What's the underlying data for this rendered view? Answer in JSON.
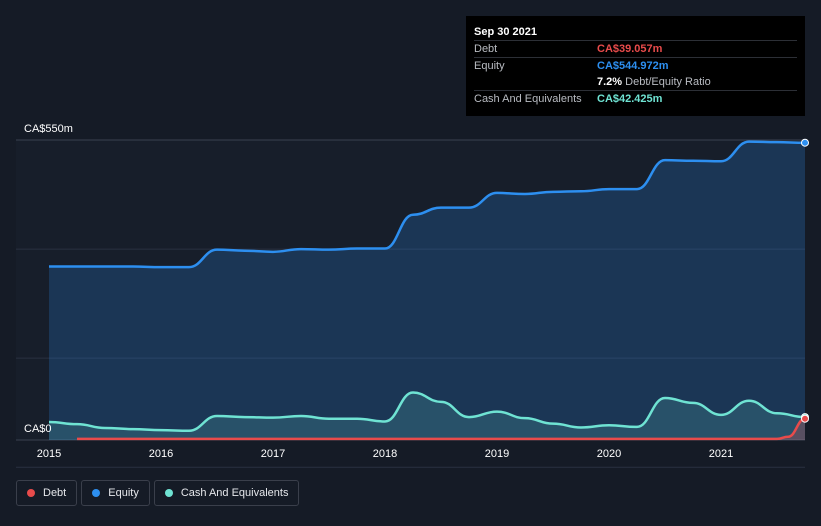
{
  "tooltip": {
    "date": "Sep 30 2021",
    "rows": [
      {
        "label": "Debt",
        "value": "CA$39.057m",
        "color": "#e84b4b"
      },
      {
        "label": "Equity",
        "value": "CA$544.972m",
        "color": "#2d8ff0"
      },
      {
        "label": "",
        "value": "7.2%",
        "suffix": "Debt/Equity Ratio",
        "color": "#ffffff"
      },
      {
        "label": "Cash And Equivalents",
        "value": "CA$42.425m",
        "color": "#6fe3d3"
      }
    ]
  },
  "legend": [
    {
      "label": "Debt",
      "color": "#e84b4b"
    },
    {
      "label": "Equity",
      "color": "#2d8ff0"
    },
    {
      "label": "Cash And Equivalents",
      "color": "#6fe3d3"
    }
  ],
  "chart_data": {
    "type": "area",
    "y_top_label": "CA$550m",
    "y_bottom_label": "CA$0",
    "ylim": [
      0,
      550
    ],
    "xlim": [
      2015,
      2021.75
    ],
    "x_ticks": [
      "2015",
      "2016",
      "2017",
      "2018",
      "2019",
      "2020",
      "2021"
    ],
    "grid": true,
    "series": [
      {
        "name": "Debt",
        "color": "#e84b4b",
        "x": [
          2015.25,
          2016,
          2017,
          2018,
          2019,
          2020,
          2021,
          2021.5,
          2021.6,
          2021.75
        ],
        "y": [
          2,
          2,
          2,
          2,
          2,
          2,
          2,
          2,
          6,
          39
        ]
      },
      {
        "name": "Equity",
        "color": "#2d8ff0",
        "x": [
          2015,
          2015.25,
          2015.5,
          2015.75,
          2016,
          2016.25,
          2016.5,
          2016.75,
          2017,
          2017.25,
          2017.5,
          2017.75,
          2018,
          2018.25,
          2018.5,
          2018.75,
          2019,
          2019.25,
          2019.5,
          2019.75,
          2020,
          2020.25,
          2020.5,
          2020.75,
          2021,
          2021.25,
          2021.5,
          2021.75
        ],
        "y": [
          318,
          318,
          318,
          318,
          317,
          317,
          349,
          347,
          345,
          350,
          349,
          351,
          351,
          413,
          426,
          426,
          453,
          451,
          455,
          456,
          460,
          460,
          513,
          512,
          511,
          547,
          546,
          545
        ]
      },
      {
        "name": "Cash And Equivalents",
        "color": "#6fe3d3",
        "x": [
          2015,
          2015.25,
          2015.5,
          2015.75,
          2016,
          2016.25,
          2016.5,
          2016.75,
          2017,
          2017.25,
          2017.5,
          2017.75,
          2018,
          2018.25,
          2018.5,
          2018.75,
          2019,
          2019.25,
          2019.5,
          2019.75,
          2020,
          2020.25,
          2020.5,
          2020.75,
          2021,
          2021.25,
          2021.5,
          2021.75
        ],
        "y": [
          33,
          29,
          22,
          20,
          18,
          17,
          44,
          42,
          41,
          44,
          39,
          39,
          34,
          87,
          70,
          42,
          52,
          40,
          30,
          23,
          27,
          24,
          77,
          68,
          46,
          72,
          49,
          42
        ]
      }
    ]
  }
}
